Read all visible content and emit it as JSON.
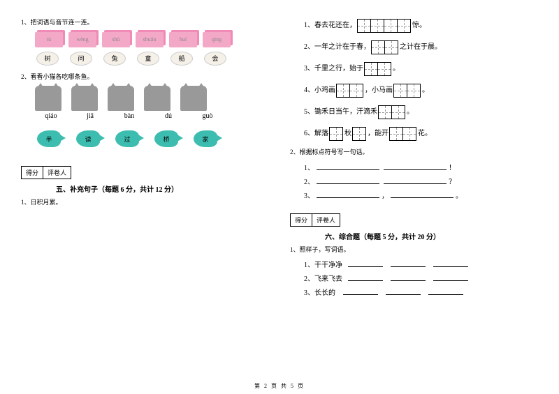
{
  "left": {
    "q1_label": "1、把词语与音节连一连。",
    "cards": [
      "tù",
      "wèng",
      "shù",
      "shuān",
      "huí",
      "qīng"
    ],
    "pillows": [
      "树",
      "问",
      "兔",
      "童",
      "船",
      "会"
    ],
    "q2_label": "2、看看小猫各吃哪条鱼。",
    "pinyin": [
      "qiáo",
      "jiā",
      "bàn",
      "dú",
      "guò"
    ],
    "fish": [
      "半",
      "读",
      "过",
      "桥",
      "家"
    ],
    "score": {
      "c1": "得分",
      "c2": "评卷人"
    },
    "section5": "五、补充句子（每题 6 分，共计 12 分）",
    "s5_q1": "1、日积月累。"
  },
  "right": {
    "f1_pre": "1、春去花还在，",
    "f1_post": "惊。",
    "f2_pre": "2、一年之计在于春，",
    "f2_post": "之计在于晨。",
    "f3_pre": "3、千里之行，始于",
    "f3_post": "。",
    "f4_pre": "4、小鸡画",
    "f4_mid": "，小马画",
    "f4_post": "。",
    "f5_pre": "5、锄禾日当午，汗滴禾",
    "f5_post": "。",
    "f6_pre": "6、解落",
    "f6_mid": "秋",
    "f6_mid2": "，能开",
    "f6_post": "花。",
    "q2_label": "2、根据标点符号写一句话。",
    "line1_num": "1、",
    "line1_end": "！",
    "line2_num": "2、",
    "line2_end": "？",
    "line3_num": "3、",
    "line3_mid": "，",
    "line3_end": "。",
    "score": {
      "c1": "得分",
      "c2": "评卷人"
    },
    "section6": "六、综合题（每题 5 分，共计 20 分）",
    "s6_q1": "1、照样子，写词语。",
    "ex1": "1、干干净净",
    "ex2": "2、飞来飞去",
    "ex3": "3、长长的"
  },
  "footer": "第 2 页 共 5 页",
  "style": {
    "page_bg": "#ffffff",
    "text_color": "#000000",
    "card_color": "#f4a8c8",
    "card_back": "#f08bb8",
    "pillow_color": "#f5f0e8",
    "cat_color": "#999999",
    "fish_color": "#3dbdb0",
    "grid_dash": "#999999",
    "base_font_size": 9,
    "title_font_size": 10
  }
}
